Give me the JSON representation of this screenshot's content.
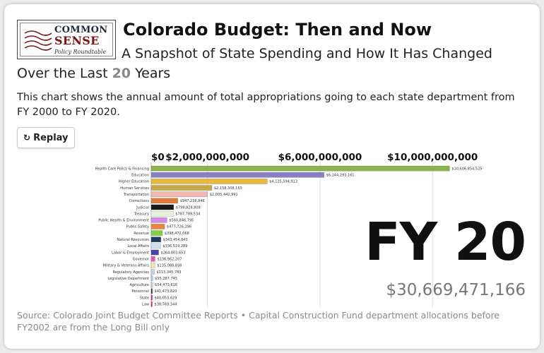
{
  "logo": {
    "line1": "COMMON",
    "line2": "SENSE",
    "line3": "Policy Roundtable"
  },
  "header": {
    "title": "Colorado Budget: Then and Now",
    "subtitle_before": "A Snapshot of State Spending and How It Has Changed Over the Last ",
    "subtitle_number": "20",
    "subtitle_after": " Years",
    "description": "This chart shows the annual amount of total appropriations going to each state department from FY 2000 to FY 2020."
  },
  "controls": {
    "replay_label": "Replay",
    "replay_icon": "replay-icon"
  },
  "readout": {
    "year_label": "FY 20",
    "total": "$30,669,471,166"
  },
  "source": "Source: Colorado Joint Budget Committee Reports • Capital Construction Fund department allocations before FY2002 are from the Long Bill only",
  "chart_data": {
    "type": "bar",
    "orientation": "horizontal",
    "x_ticks": [
      {
        "value": 0,
        "label": "$0"
      },
      {
        "value": 2000000000,
        "label": "$2,000,000,000"
      },
      {
        "value": 6000000000,
        "label": "$6,000,000,000"
      },
      {
        "value": 10000000000,
        "label": "$10,000,000,000"
      }
    ],
    "xlim": [
      0,
      11200000000
    ],
    "grid": true,
    "categories": [
      "Health Care Policy & Financing",
      "Education",
      "Higher Education",
      "Human Services",
      "Transportation",
      "Corrections",
      "Judicial",
      "Treasury",
      "Public Health & Environment",
      "Public Safety",
      "Revenue",
      "Natural Resources",
      "Local Affairs",
      "Labor & Employment",
      "Governor",
      "Military & Veterans Affairs",
      "Regulatory Agencies",
      "Legislative Department",
      "Agriculture",
      "Personnel",
      "State",
      "Law"
    ],
    "values": [
      10606854525,
      6144293161,
      4125594913,
      2158308153,
      2005442991,
      947238846,
      798824808,
      787789534,
      560846795,
      477726296,
      398472068,
      343454843,
      336519289,
      264803653,
      136962207,
      135088838,
      113345783,
      55287745,
      54473616,
      41473820,
      40053629,
      38769344
    ],
    "value_labels": [
      "$10,606,854,525",
      "$6,144,293,161",
      "$4,125,594,913",
      "$2,158,308,153",
      "$2,005,442,991",
      "$947,238,846",
      "$798,824,808",
      "$787,789,534",
      "$560,846,795",
      "$477,726,296",
      "$398,472,068",
      "$343,454,843",
      "$336,519,289",
      "$264,803,653",
      "$136,962,207",
      "$135,088,838",
      "$113,345,783",
      "$55,287,745",
      "$54,473,616",
      "$41,473,820",
      "$40,053,629",
      "$38,769,344"
    ],
    "colors": [
      "#8ab34e",
      "#8a7fc4",
      "#e8b93e",
      "#c9a84a",
      "#f2b8b0",
      "#de7a3a",
      "#1a1a1a",
      "#e3f2d9",
      "#d58ce3",
      "#f0843e",
      "#7fd14a",
      "#1e3a5c",
      "#cde0ee",
      "#4a44a8",
      "#e35ab5",
      "#f5e6a8",
      "#cfd3d8",
      "#8fd6f0",
      "#bde3b4",
      "#3a3a3a",
      "#b02a8e",
      "#e23a2a"
    ]
  }
}
